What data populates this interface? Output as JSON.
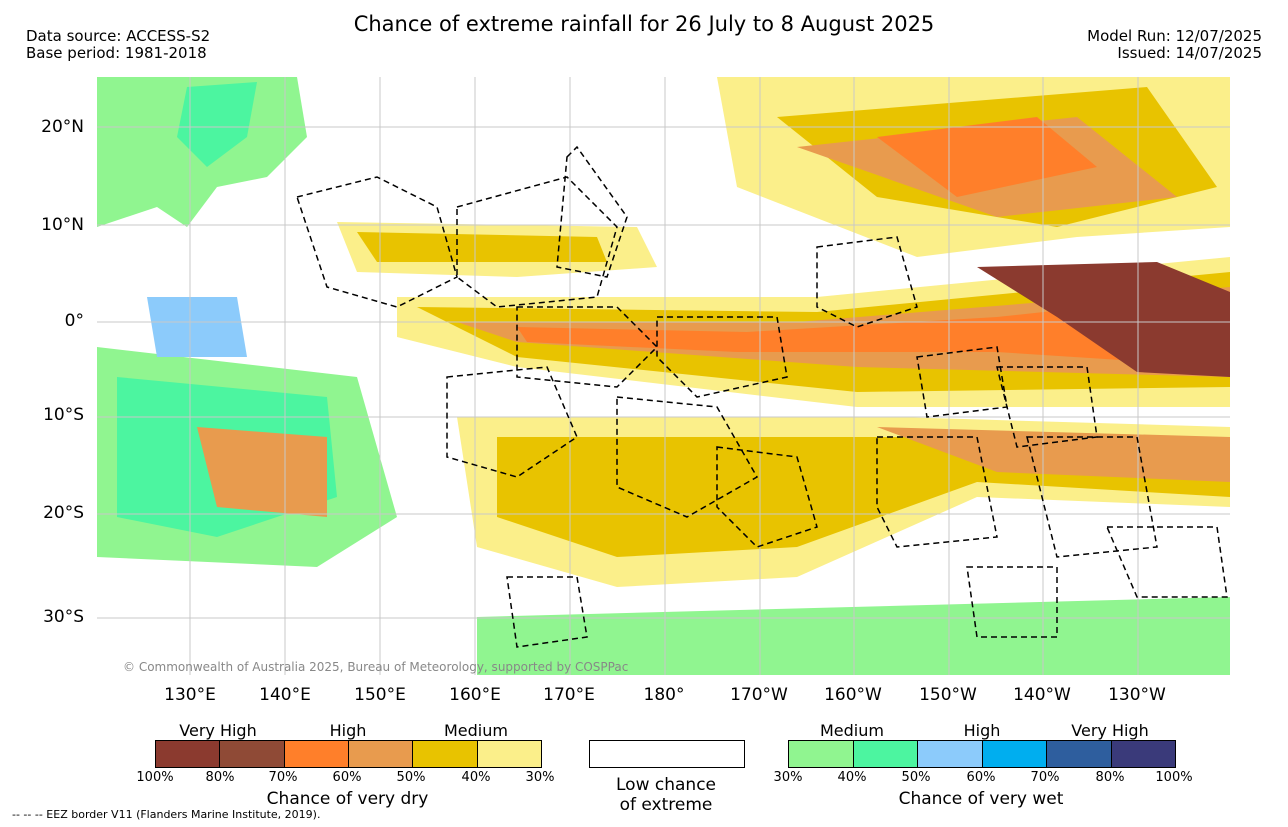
{
  "header": {
    "title": "Chance of extreme rainfall for 26 July to 8 August 2025",
    "data_source": "Data source: ACCESS-S2",
    "base_period": "Base period: 1981-2018",
    "model_run": "Model Run: 12/07/2025",
    "issued": "Issued: 14/07/2025"
  },
  "map": {
    "lat_labels": [
      "20°N",
      "10°N",
      "0°",
      "10°S",
      "20°S",
      "30°S"
    ],
    "lon_labels": [
      "130°E",
      "140°E",
      "150°E",
      "160°E",
      "170°E",
      "180°",
      "170°W",
      "160°W",
      "150°W",
      "140°W",
      "130°W"
    ],
    "copyright": "© Commonwealth of Australia 2025, Bureau of Meteorology, supported by COSPPac"
  },
  "legend": {
    "dry": {
      "categories": [
        "Very High",
        "High",
        "Medium"
      ],
      "ticks": [
        "100%",
        "80%",
        "70%",
        "60%",
        "50%",
        "40%",
        "30%"
      ],
      "colors": [
        "#8b3a2f",
        "#8f4a36",
        "#ff7f2a",
        "#e89b4e",
        "#e8c300",
        "#fbef8a"
      ],
      "caption": "Chance of very dry"
    },
    "low": {
      "caption_line1": "Low chance",
      "caption_line2": "of extreme"
    },
    "wet": {
      "categories": [
        "Medium",
        "High",
        "Very High"
      ],
      "ticks": [
        "30%",
        "40%",
        "50%",
        "60%",
        "70%",
        "80%",
        "100%"
      ],
      "colors": [
        "#90f590",
        "#4cf5a0",
        "#8ccbfb",
        "#00aeef",
        "#2e5e9e",
        "#3a3a7a"
      ],
      "caption": "Chance of very wet"
    },
    "eez_note": "--  --  -- EEZ border V11 (Flanders Marine Institute, 2019)."
  }
}
